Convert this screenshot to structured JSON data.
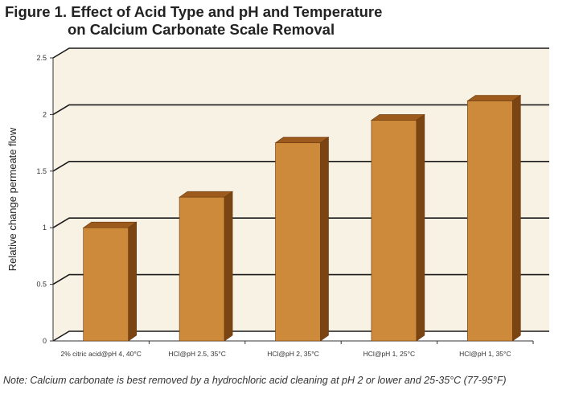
{
  "figure": {
    "title_line1": "Figure 1. Effect of Acid Type and pH and Temperature",
    "title_line2": "on Calcium Carbonate Scale Removal",
    "note": "Note: Calcium carbonate is best removed by a hydrochloric acid cleaning at pH 2 or lower and 25-35°C (77-95°F)"
  },
  "colors": {
    "bar_front": "#cc8a3a",
    "bar_top": "#9c5a1c",
    "bar_side": "#7a4413",
    "back_wall": "#f8f2e4",
    "gridline": "#1a1a1a"
  },
  "chart_data": {
    "type": "bar",
    "title": "Figure 1. Effect of Acid Type and pH and Temperature on Calcium Carbonate Scale Removal",
    "xlabel": "",
    "ylabel": "Relative change permeate flow",
    "ylim": [
      0,
      2.5
    ],
    "yticks": [
      "0",
      "0.5",
      "1",
      "1.5",
      "2",
      "2.5"
    ],
    "categories": [
      "2% citric acid@pH 4, 40°C",
      "HCl@pH 2.5, 35°C",
      "HCl@pH 2, 35°C",
      "HCl@pH 1, 25°C",
      "HCl@pH 1, 35°C"
    ],
    "values": [
      1.0,
      1.27,
      1.75,
      1.95,
      2.12
    ],
    "grid": true,
    "style": "3d"
  }
}
